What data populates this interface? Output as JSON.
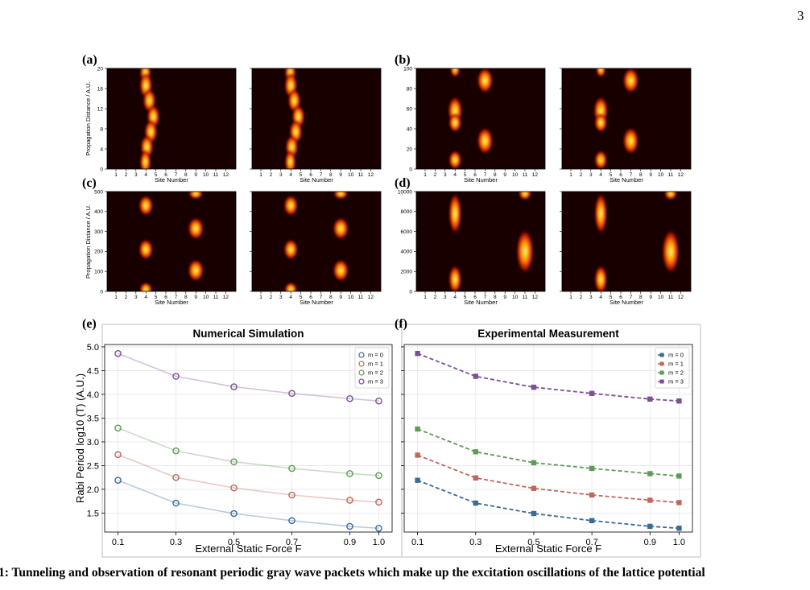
{
  "page_number": "3",
  "panel_letters": [
    "(a)",
    "(b)",
    "(c)",
    "(d)",
    "(e)",
    "(f)"
  ],
  "site_ticks": [
    "1",
    "2",
    "3",
    "4",
    "5",
    "6",
    "7",
    "8",
    "9",
    "10",
    "11",
    "12"
  ],
  "site_label": "Site Number",
  "prop_label": "Propagation Distance / A.U.",
  "heatmaps": {
    "a": {
      "ymax": 20,
      "yticks": [
        "0",
        "4",
        "8",
        "12",
        "16",
        "20"
      ]
    },
    "b": {
      "ymax": 100,
      "yticks": [
        "0",
        "20",
        "40",
        "60",
        "80",
        "100"
      ]
    },
    "c": {
      "ymax": 500,
      "yticks": [
        "0",
        "100",
        "200",
        "300",
        "400",
        "500"
      ]
    },
    "d": {
      "ymax": 10000,
      "yticks": [
        "0",
        "2000",
        "4000",
        "6000",
        "8000",
        "10000"
      ]
    }
  },
  "colors": {
    "m0": "#3b6a96",
    "m1": "#c0665a",
    "m2": "#5f9a58",
    "m3": "#7d4f95"
  },
  "chart_data": [
    {
      "type": "line",
      "title": "Numerical Simulation",
      "xlabel": "External Static Force F",
      "ylabel": "Rabi Period log10 (T) (A.U.)",
      "x": [
        0.1,
        0.3,
        0.5,
        0.7,
        0.9,
        1.0
      ],
      "x_ticklabels": [
        "0.1",
        "0.3",
        "0.5",
        "0.7",
        "0.9",
        "1.0"
      ],
      "y_ticks": [
        "1.5",
        "2.0",
        "2.5",
        "3.0",
        "3.5",
        "4.0",
        "4.5",
        "5.0"
      ],
      "ylim": [
        1.1,
        5.05
      ],
      "grid": true,
      "legend": "top-right",
      "marker": "open-circle",
      "series": [
        {
          "name": "m = 0",
          "values": [
            2.19,
            1.71,
            1.49,
            1.34,
            1.22,
            1.18
          ]
        },
        {
          "name": "m = 1",
          "values": [
            2.73,
            2.25,
            2.03,
            1.88,
            1.77,
            1.73
          ]
        },
        {
          "name": "m = 2",
          "values": [
            3.29,
            2.81,
            2.58,
            2.44,
            2.33,
            2.29
          ]
        },
        {
          "name": "m = 3",
          "values": [
            4.86,
            4.38,
            4.16,
            4.02,
            3.91,
            3.86
          ]
        }
      ]
    },
    {
      "type": "line",
      "title": "Experimental Measurement",
      "xlabel": "External Static Force F",
      "x": [
        0.1,
        0.3,
        0.5,
        0.7,
        0.9,
        1.0
      ],
      "x_ticklabels": [
        "0.1",
        "0.3",
        "0.5",
        "0.7",
        "0.9",
        "1.0"
      ],
      "ylim": [
        1.1,
        5.05
      ],
      "grid": true,
      "legend": "top-right",
      "marker": "square",
      "series": [
        {
          "name": "m = 0",
          "values": [
            2.19,
            1.71,
            1.49,
            1.34,
            1.22,
            1.18
          ]
        },
        {
          "name": "m = 1",
          "values": [
            2.72,
            2.24,
            2.02,
            1.88,
            1.77,
            1.72
          ]
        },
        {
          "name": "m = 2",
          "values": [
            3.27,
            2.79,
            2.56,
            2.44,
            2.33,
            2.28
          ]
        },
        {
          "name": "m = 3",
          "values": [
            4.86,
            4.38,
            4.15,
            4.02,
            3.9,
            3.86
          ]
        }
      ]
    }
  ],
  "caption": "1: Tunneling and observation of resonant periodic gray wave packets which make up the excitation oscillations of the lattice potential"
}
